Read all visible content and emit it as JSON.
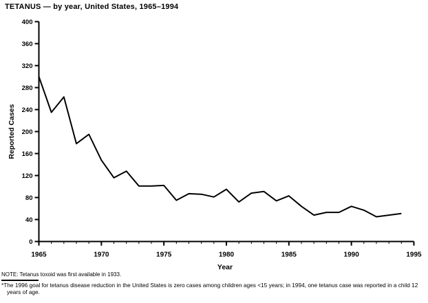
{
  "title": "TETANUS — by year, United States, 1965–1994",
  "note": "NOTE: Tetanus toxoid was first available in 1933.",
  "footnote_marker": "*",
  "footnote_text": "The 1996 goal for tetanus disease reduction in the United States is zero cases among children ages <15 years; in 1994, one tetanus case was reported in a child 12 years of age.",
  "chart_data": {
    "type": "line",
    "title": "TETANUS — by year, United States, 1965–1994",
    "xlabel": "Year",
    "ylabel": "Reported Cases",
    "x": [
      1965,
      1966,
      1967,
      1968,
      1969,
      1970,
      1971,
      1972,
      1973,
      1974,
      1975,
      1976,
      1977,
      1978,
      1979,
      1980,
      1981,
      1982,
      1983,
      1984,
      1985,
      1986,
      1987,
      1988,
      1989,
      1990,
      1991,
      1992,
      1993,
      1994
    ],
    "values": [
      300,
      235,
      263,
      178,
      195,
      148,
      116,
      128,
      101,
      101,
      102,
      75,
      87,
      86,
      81,
      95,
      72,
      88,
      91,
      74,
      83,
      64,
      48,
      53,
      53,
      64,
      57,
      45,
      48,
      51
    ],
    "xlim": [
      1965,
      1995
    ],
    "ylim": [
      0,
      400
    ],
    "yticks": [
      0,
      40,
      80,
      120,
      160,
      200,
      240,
      280,
      320,
      360,
      400
    ],
    "xticks_major": [
      1965,
      1970,
      1975,
      1980,
      1985,
      1990,
      1995
    ],
    "xtick_minor_interval": 1,
    "grid": false,
    "legend": "none",
    "line_color": "#000000",
    "background_color": "#ffffff"
  }
}
